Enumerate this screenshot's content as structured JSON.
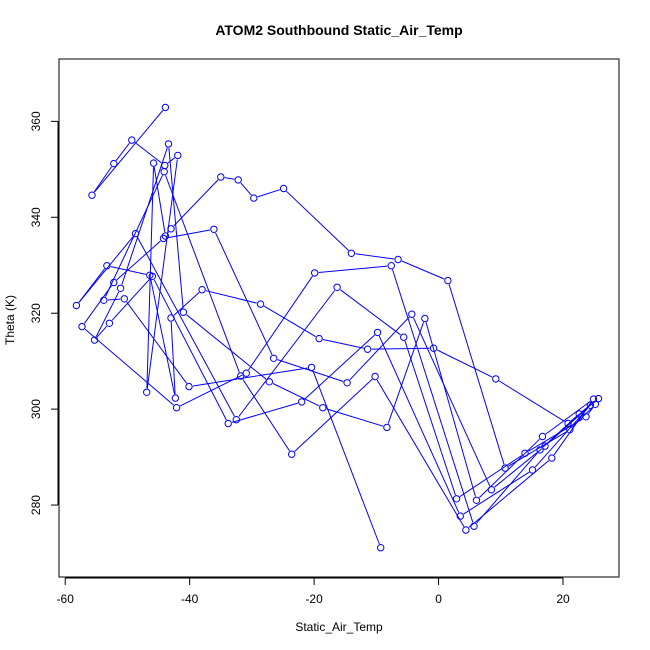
{
  "chart_data": {
    "type": "scatter",
    "title": "ATOM2 Southbound Static_Air_Temp",
    "xlabel": "Static_Air_Temp",
    "ylabel": "Theta (K)",
    "xlim": [
      -61,
      29
    ],
    "ylim": [
      265,
      373
    ],
    "xticks": [
      -60,
      -40,
      -20,
      0,
      20
    ],
    "yticks": [
      280,
      300,
      320,
      340,
      360
    ],
    "color": "#0000ff",
    "grid": false,
    "line_and_points": true,
    "x": [
      -43.9,
      -55.7,
      -52.2,
      -49.3,
      -44.0,
      -41.9,
      -46.9,
      -45.8,
      -43.9,
      -43.0,
      -35.0,
      -32.2,
      -29.7,
      -24.9,
      -14.0,
      -6.5,
      1.5,
      10.7,
      21.1,
      25.2,
      23.7,
      13.9,
      2.9,
      -5.6,
      -16.3,
      -32.5,
      -48.7,
      -58.2,
      -53.3,
      -46.4,
      -42.3,
      -43.0,
      -38.0,
      -28.6,
      -19.2,
      -11.4,
      -0.8,
      9.2,
      20.8,
      25.7,
      22.6,
      16.3,
      5.7,
      -7.6,
      -19.9,
      -30.9,
      -42.1,
      -57.3,
      -52.2,
      -44.2,
      -36.1,
      -26.5,
      -14.7,
      -4.3,
      8.5,
      17.1,
      24.4,
      15.1,
      3.5,
      -9.8,
      -22.0,
      -33.8,
      -46.0,
      -52.9,
      -55.3,
      -51.1,
      -43.4,
      -41.0,
      -27.2,
      -18.6,
      -8.3,
      -2.2,
      6.1,
      16.7,
      24.9,
      18.2,
      4.4,
      -10.2,
      -23.6,
      -31.8,
      -44.1,
      -53.8,
      -50.5,
      -40.1,
      -20.4,
      -9.3
    ],
    "y": [
      362.9,
      344.6,
      351.2,
      356.1,
      350.8,
      352.9,
      303.5,
      351.3,
      336.1,
      337.6,
      348.4,
      347.8,
      344.0,
      346.0,
      332.5,
      331.2,
      326.8,
      287.7,
      295.7,
      301.0,
      298.4,
      290.8,
      281.3,
      315.0,
      325.4,
      297.8,
      336.6,
      321.6,
      329.9,
      327.9,
      302.3,
      319.0,
      324.9,
      321.9,
      314.7,
      312.5,
      312.7,
      306.3,
      297.0,
      302.2,
      299.0,
      291.5,
      275.6,
      329.9,
      328.4,
      307.5,
      300.3,
      317.2,
      326.4,
      335.6,
      337.5,
      310.6,
      305.5,
      319.8,
      283.2,
      292.3,
      300.8,
      287.3,
      277.7,
      316.0,
      301.5,
      297.0,
      327.7,
      317.9,
      314.4,
      325.2,
      355.3,
      320.2,
      305.7,
      300.3,
      296.2,
      318.9,
      281.0,
      294.3,
      302.1,
      289.8,
      274.8,
      306.8,
      290.6,
      306.9,
      349.5,
      322.7,
      323.0,
      304.7,
      308.7,
      271.1
    ]
  }
}
